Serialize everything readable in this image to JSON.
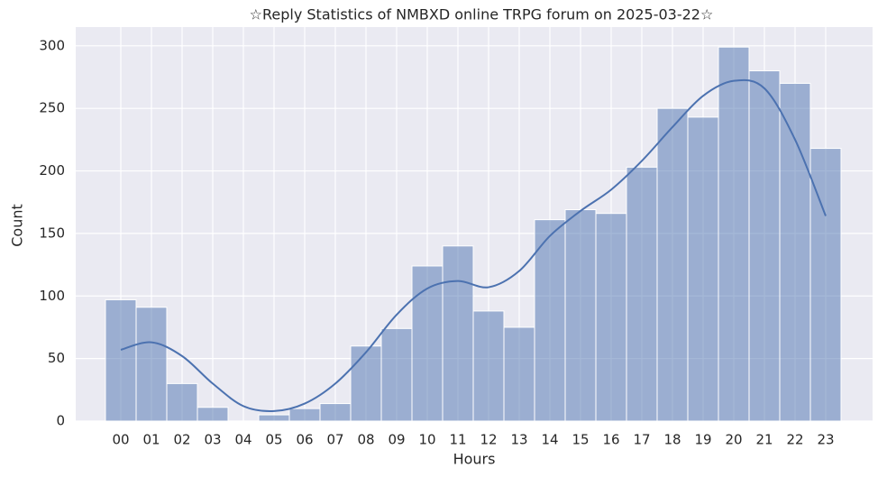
{
  "chart_data": {
    "type": "bar",
    "title": "☆Reply Statistics of NMBXD online TRPG forum on 2025-03-22☆",
    "x_label": "Hours",
    "y_label": "Count",
    "categories": [
      "00",
      "01",
      "02",
      "03",
      "04",
      "05",
      "06",
      "07",
      "08",
      "09",
      "10",
      "11",
      "12",
      "13",
      "14",
      "15",
      "16",
      "17",
      "18",
      "19",
      "20",
      "21",
      "22",
      "23"
    ],
    "values": [
      97,
      91,
      30,
      11,
      0,
      5,
      10,
      14,
      60,
      74,
      124,
      140,
      88,
      75,
      161,
      169,
      166,
      203,
      250,
      243,
      299,
      280,
      270,
      218
    ],
    "color": "#4c72b0",
    "kde_values": [
      57,
      63,
      52,
      30,
      12,
      8,
      14,
      30,
      55,
      85,
      106,
      112,
      107,
      120,
      148,
      168,
      185,
      208,
      235,
      260,
      272,
      266,
      225,
      164
    ],
    "kde_color": "#4c72b0",
    "ylim": [
      0,
      315
    ],
    "yticks": [
      0,
      50,
      100,
      150,
      200,
      250,
      300
    ],
    "grid": true
  }
}
